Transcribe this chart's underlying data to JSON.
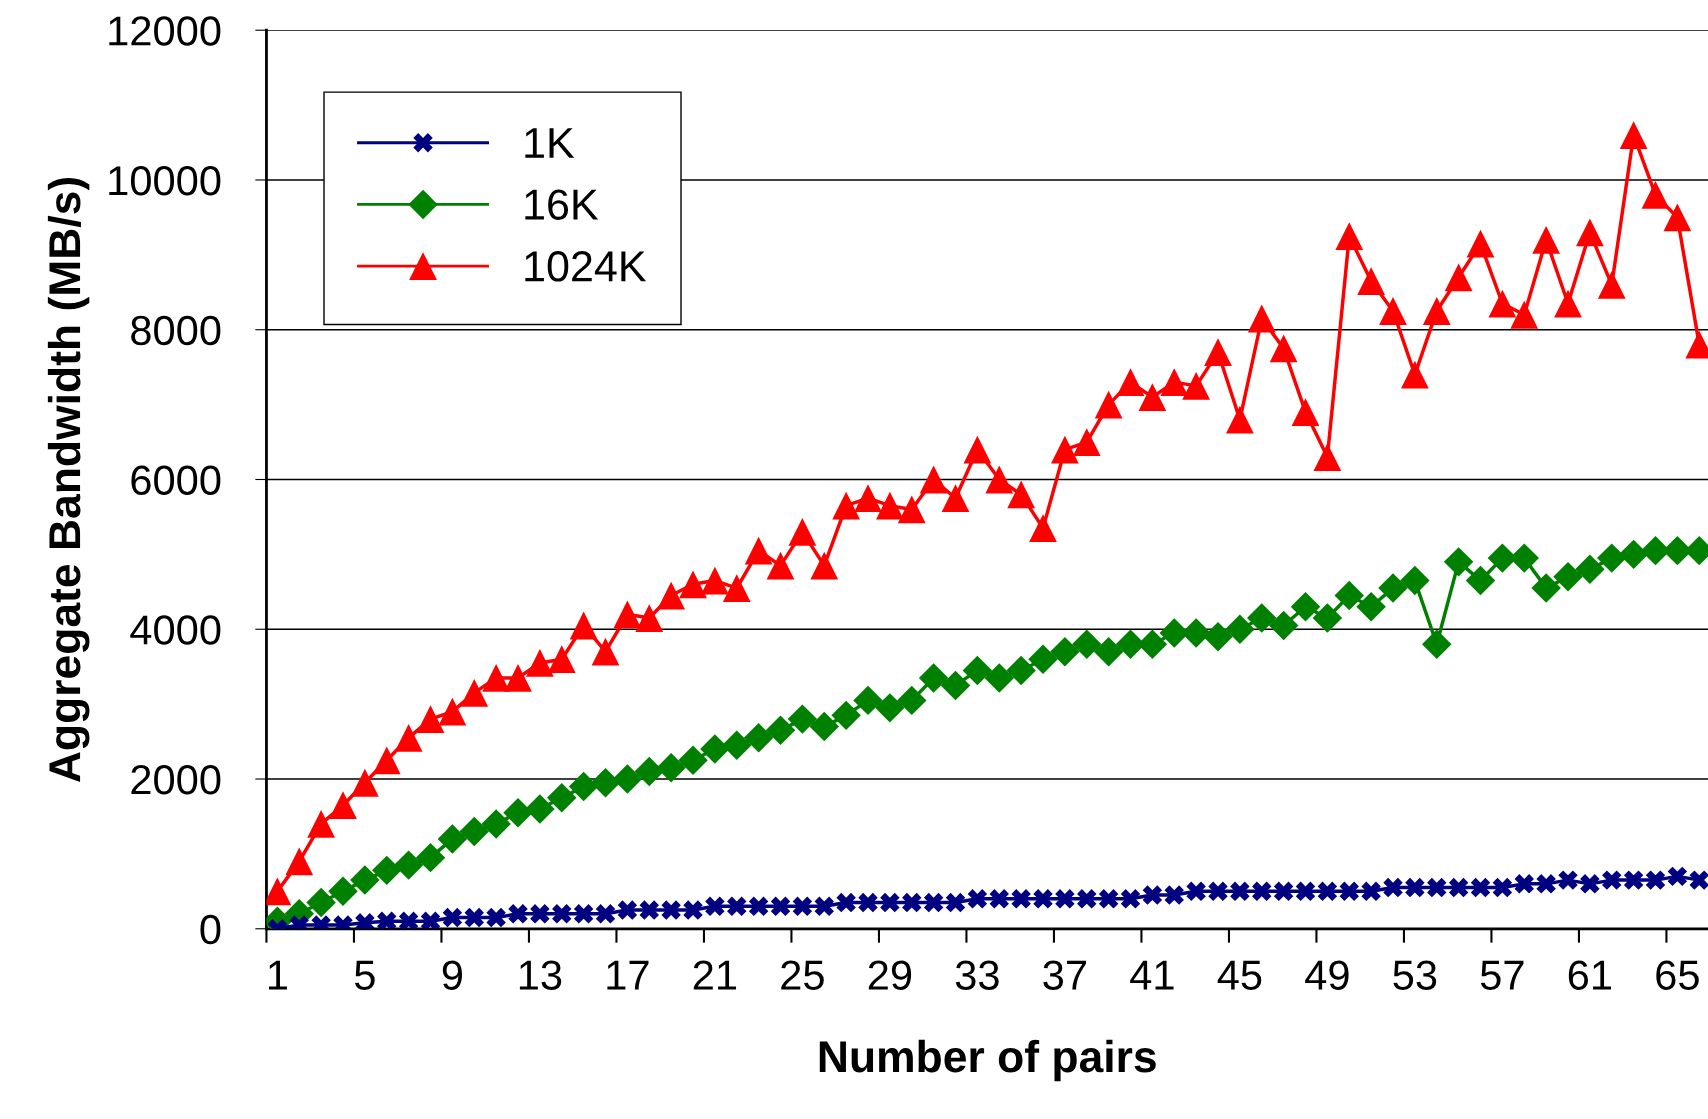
{
  "chart_data": {
    "type": "line",
    "xlabel": "Number of pairs",
    "ylabel": "Aggregate Bandwidth (MB/s)",
    "categories": [
      "1",
      null,
      null,
      null,
      "5",
      null,
      null,
      null,
      "9",
      null,
      null,
      null,
      "13",
      null,
      null,
      null,
      "17",
      null,
      null,
      null,
      "21",
      null,
      null,
      null,
      "25",
      null,
      null,
      null,
      "29",
      null,
      null,
      null,
      "33",
      null,
      null,
      null,
      "37",
      null,
      null,
      null,
      "41",
      null,
      null,
      null,
      "45",
      null,
      null,
      null,
      "49",
      null,
      null,
      null,
      "53",
      null,
      null,
      null,
      "57",
      null,
      null,
      null,
      "61",
      null,
      null,
      null,
      "65",
      null
    ],
    "ylim": [
      0,
      12000
    ],
    "yticks": [
      0,
      2000,
      4000,
      6000,
      8000,
      10000,
      12000
    ],
    "grid": "y",
    "legend": "top left",
    "series": [
      {
        "name": "1K",
        "color": "#000080",
        "marker": "cross",
        "values": [
          0,
          50,
          50,
          50,
          80,
          100,
          100,
          100,
          150,
          150,
          150,
          200,
          200,
          200,
          200,
          200,
          250,
          250,
          250,
          250,
          300,
          300,
          300,
          300,
          300,
          300,
          350,
          350,
          350,
          350,
          350,
          350,
          400,
          400,
          400,
          400,
          400,
          400,
          400,
          400,
          450,
          450,
          500,
          500,
          500,
          500,
          500,
          500,
          500,
          500,
          500,
          550,
          550,
          550,
          550,
          550,
          550,
          600,
          600,
          650,
          600,
          650,
          650,
          650,
          700,
          650
        ]
      },
      {
        "name": "16K",
        "color": "#008000",
        "marker": "diamond",
        "values": [
          100,
          200,
          350,
          500,
          650,
          780,
          850,
          950,
          1200,
          1300,
          1400,
          1550,
          1600,
          1750,
          1900,
          1950,
          2000,
          2100,
          2150,
          2250,
          2400,
          2450,
          2550,
          2650,
          2800,
          2700,
          2850,
          3050,
          2950,
          3050,
          3350,
          3250,
          3450,
          3350,
          3450,
          3600,
          3700,
          3800,
          3700,
          3800,
          3800,
          3950,
          3950,
          3900,
          4000,
          4150,
          4050,
          4300,
          4150,
          4450,
          4300,
          4550,
          4650,
          3800,
          4900,
          4650,
          4950,
          4950,
          4550,
          4700,
          4800,
          4950,
          5000,
          5050,
          5050,
          5050
        ]
      },
      {
        "name": "1024K",
        "color": "#ff0000",
        "marker": "triangle",
        "values": [
          500,
          900,
          1400,
          1650,
          1950,
          2250,
          2550,
          2800,
          2900,
          3150,
          3350,
          3350,
          3550,
          3600,
          4050,
          3700,
          4200,
          4150,
          4450,
          4600,
          4650,
          4550,
          5050,
          4850,
          5300,
          4850,
          5650,
          5750,
          5650,
          5600,
          6000,
          5750,
          6400,
          6000,
          5800,
          5350,
          6400,
          6500,
          7000,
          7300,
          7100,
          7300,
          7250,
          7700,
          6800,
          8150,
          7750,
          6900,
          6300,
          9250,
          8650,
          8250,
          7400,
          8250,
          8700,
          9150,
          8350,
          8200,
          9200,
          8350,
          9300,
          8600,
          10600,
          9800,
          9500,
          7800
        ]
      }
    ]
  }
}
